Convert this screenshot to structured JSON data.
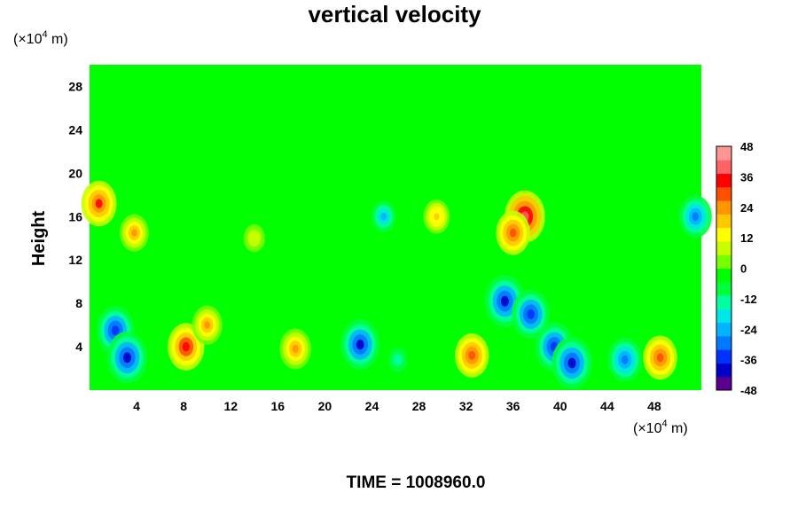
{
  "chart_data": {
    "type": "heatmap",
    "title": "vertical velocity",
    "ylabel": "Height",
    "x_unit": {
      "prefix": "(×10",
      "exp": "4",
      "suffix": " m)"
    },
    "y_unit": {
      "prefix": "(×10",
      "exp": "4",
      "suffix": " m)"
    },
    "xlim": [
      0,
      52
    ],
    "ylim": [
      0,
      30
    ],
    "x_ticks": [
      4,
      8,
      12,
      16,
      20,
      24,
      28,
      32,
      36,
      40,
      44,
      48
    ],
    "y_ticks": [
      4,
      8,
      12,
      16,
      20,
      24,
      28
    ],
    "colorbar": {
      "range": [
        -48,
        48
      ],
      "ticks": [
        48,
        36,
        24,
        12,
        0,
        -12,
        -24,
        -36,
        -48
      ],
      "colors": [
        "#5a008c",
        "#0000c8",
        "#0032ff",
        "#0078ff",
        "#00b4ff",
        "#00e6e6",
        "#00ffa0",
        "#00ff3c",
        "#00ff00",
        "#78ff00",
        "#c8ff00",
        "#ffff00",
        "#ffc800",
        "#ff9600",
        "#ff5000",
        "#ff0000",
        "#ff6464",
        "#ff9696"
      ]
    },
    "features": [
      {
        "x": 2.2,
        "y": 5.5,
        "value": -36
      },
      {
        "x": 3.2,
        "y": 3.0,
        "value": -40
      },
      {
        "x": 8.2,
        "y": 4.0,
        "value": 34
      },
      {
        "x": 10.0,
        "y": 6.0,
        "value": 24
      },
      {
        "x": 17.5,
        "y": 3.8,
        "value": 26
      },
      {
        "x": 23.0,
        "y": 4.2,
        "value": -38
      },
      {
        "x": 26.2,
        "y": 2.8,
        "value": -14
      },
      {
        "x": 32.5,
        "y": 3.2,
        "value": 30
      },
      {
        "x": 39.5,
        "y": 4.0,
        "value": -36
      },
      {
        "x": 41.0,
        "y": 2.5,
        "value": -40
      },
      {
        "x": 35.3,
        "y": 8.2,
        "value": -40
      },
      {
        "x": 37.5,
        "y": 7.0,
        "value": -36
      },
      {
        "x": 45.5,
        "y": 2.8,
        "value": -30
      },
      {
        "x": 48.5,
        "y": 3.0,
        "value": 30
      },
      {
        "x": 0.8,
        "y": 17.2,
        "value": 32
      },
      {
        "x": 3.8,
        "y": 14.5,
        "value": 22
      },
      {
        "x": 37.0,
        "y": 16.0,
        "value": 40
      },
      {
        "x": 36.0,
        "y": 14.5,
        "value": 30
      },
      {
        "x": 25.0,
        "y": 16.0,
        "value": -24
      },
      {
        "x": 51.5,
        "y": 16.0,
        "value": -28
      },
      {
        "x": 29.5,
        "y": 16.0,
        "value": 18
      },
      {
        "x": 14.0,
        "y": 14.0,
        "value": 10
      }
    ]
  },
  "time_label": "TIME = 1008960.0"
}
